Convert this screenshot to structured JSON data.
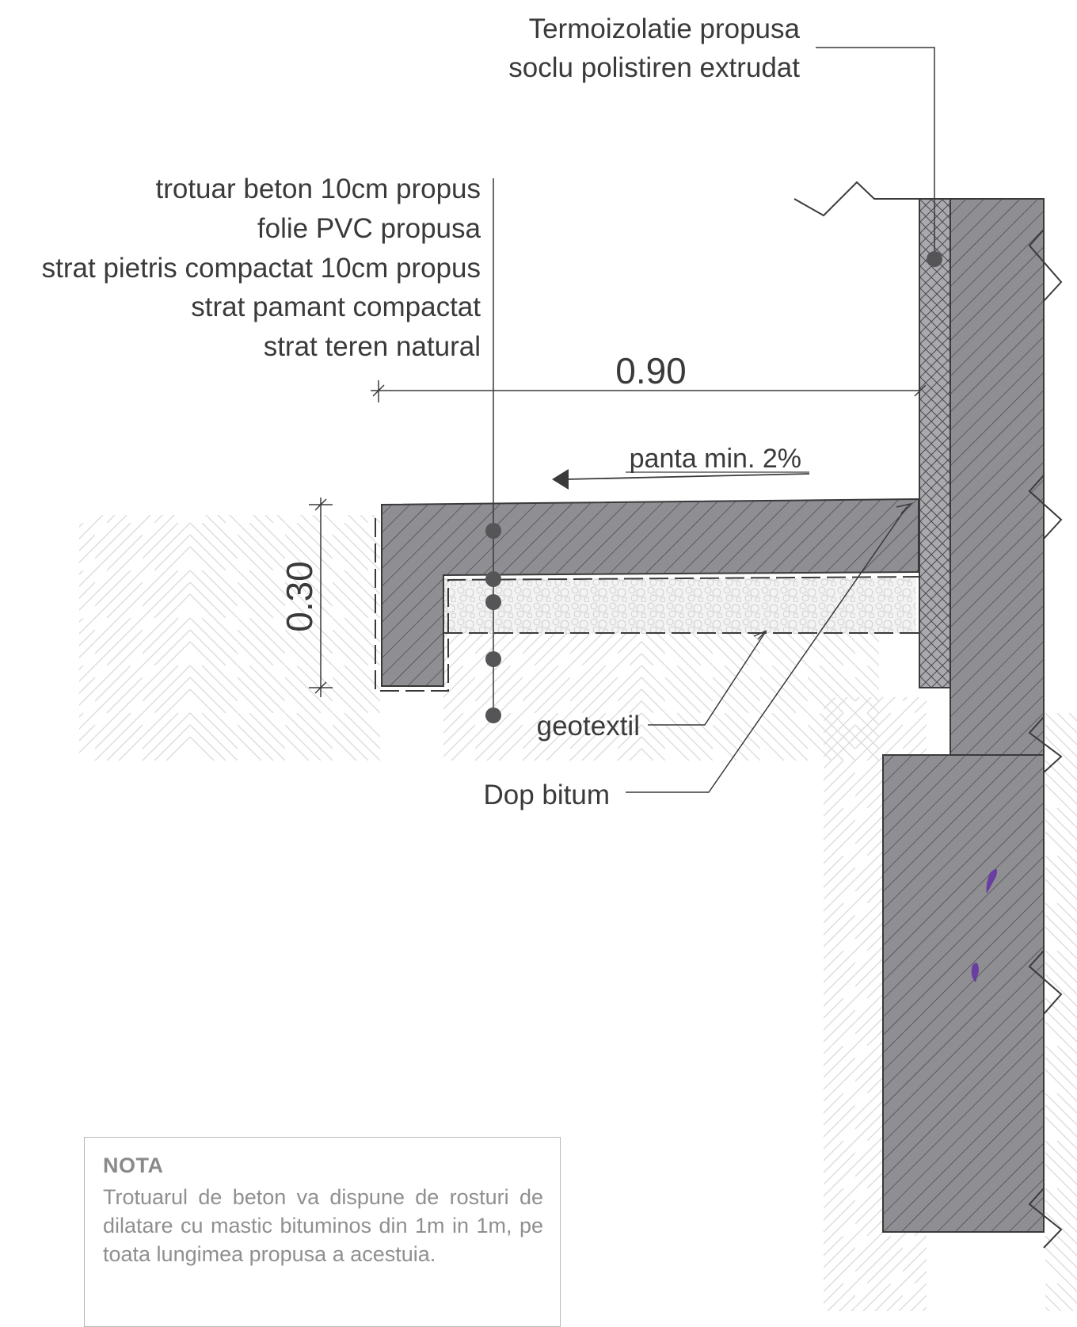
{
  "labels": {
    "termo_line1": "Termoizolatie propusa",
    "termo_line2": "soclu polistiren extrudat",
    "layers": [
      "trotuar beton 10cm propus",
      "folie PVC propusa",
      "strat pietris compactat 10cm propus",
      "strat pamant compactat",
      "strat teren natural"
    ],
    "dim_width": "0.90",
    "slope": "panta min. 2%",
    "dim_height": "0.30",
    "geotextil": "geotextil",
    "dop_bitum": "Dop bitum"
  },
  "nota": {
    "title": "NOTA",
    "text": "Trotuarul de beton va dispune de rosturi de dilatare cu mastic bituminos din 1m in 1m, pe toata lungimea propusa a acestuia."
  },
  "colors": {
    "concrete": "#8e8e93",
    "insulation": "#aaaaae",
    "gravel": "#f2f2f2",
    "soil_hatch": "#dadada",
    "line": "#3a3a3a",
    "accent": "#6a3ea0"
  }
}
